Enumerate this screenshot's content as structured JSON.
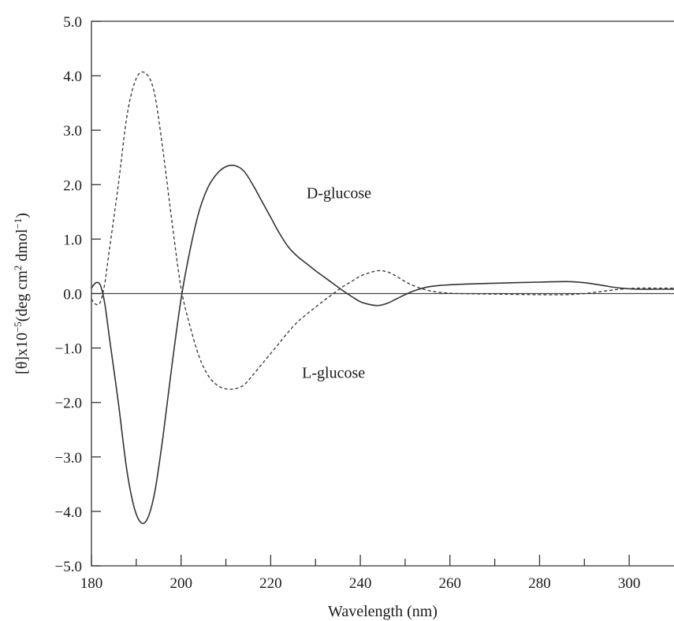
{
  "chart_data": {
    "type": "line",
    "title": "",
    "xlabel": "Wavelength (nm)",
    "ylabel_parts": [
      "[θ]x10",
      "−5",
      "(deg cm",
      "2",
      " dmol",
      "−1",
      ")"
    ],
    "xlim": [
      180,
      310
    ],
    "ylim": [
      -5.0,
      5.0
    ],
    "x_ticks": [
      180,
      200,
      220,
      240,
      260,
      280,
      300
    ],
    "x_minor_ticks": [
      190,
      210,
      230,
      250,
      270,
      290
    ],
    "y_ticks": [
      -5.0,
      -4.0,
      -3.0,
      -2.0,
      -1.0,
      0.0,
      1.0,
      2.0,
      3.0,
      4.0,
      5.0
    ],
    "y_tick_labels": [
      "−5.0",
      "−4.0",
      "−3.0",
      "−2.0",
      "−1.0",
      "0.0",
      "1.0",
      "2.0",
      "3.0",
      "4.0",
      "5.0"
    ],
    "zero_line": true,
    "grid": false,
    "series": [
      {
        "name": "D-glucose",
        "style": "solid",
        "color": "#333333",
        "x": [
          180,
          181,
          182,
          183,
          184,
          186,
          188,
          190,
          192,
          194,
          196,
          198,
          200,
          202,
          204,
          206,
          208,
          210,
          212,
          214,
          216,
          218,
          220,
          222,
          224,
          226,
          228,
          230,
          232,
          234,
          236,
          238,
          240,
          242,
          244,
          246,
          248,
          250,
          252,
          255,
          258,
          262,
          270,
          280,
          286,
          290,
          294,
          298,
          302,
          306,
          310
        ],
        "y": [
          0.1,
          0.2,
          0.15,
          -0.2,
          -0.8,
          -2.0,
          -3.3,
          -4.05,
          -4.2,
          -3.7,
          -2.6,
          -1.3,
          -0.1,
          0.8,
          1.5,
          1.95,
          2.2,
          2.33,
          2.35,
          2.25,
          2.0,
          1.7,
          1.4,
          1.1,
          0.85,
          0.68,
          0.55,
          0.42,
          0.3,
          0.18,
          0.06,
          -0.05,
          -0.15,
          -0.2,
          -0.22,
          -0.18,
          -0.1,
          -0.02,
          0.05,
          0.12,
          0.15,
          0.17,
          0.19,
          0.21,
          0.22,
          0.2,
          0.15,
          0.1,
          0.08,
          0.08,
          0.08
        ]
      },
      {
        "name": "L-glucose",
        "style": "dashed",
        "color": "#333333",
        "x": [
          180,
          181,
          182,
          183,
          184,
          186,
          188,
          190,
          192,
          194,
          196,
          198,
          200,
          202,
          204,
          206,
          208,
          210,
          212,
          214,
          216,
          218,
          220,
          222,
          224,
          226,
          228,
          230,
          232,
          234,
          236,
          238,
          240,
          242,
          244,
          246,
          248,
          250,
          252,
          255,
          258,
          262,
          270,
          280,
          286,
          290,
          294,
          298,
          302,
          306,
          310
        ],
        "y": [
          -0.1,
          -0.2,
          -0.15,
          0.2,
          0.8,
          2.0,
          3.3,
          3.95,
          4.05,
          3.7,
          2.6,
          1.3,
          0.1,
          -0.6,
          -1.15,
          -1.5,
          -1.68,
          -1.75,
          -1.75,
          -1.68,
          -1.5,
          -1.3,
          -1.1,
          -0.9,
          -0.7,
          -0.52,
          -0.38,
          -0.25,
          -0.12,
          0.0,
          0.12,
          0.22,
          0.32,
          0.38,
          0.42,
          0.4,
          0.32,
          0.22,
          0.14,
          0.06,
          0.02,
          0.0,
          -0.01,
          -0.02,
          -0.02,
          0.0,
          0.04,
          0.08,
          0.1,
          0.1,
          0.1
        ]
      }
    ],
    "annotations": [
      {
        "text": "D-glucose",
        "x": 228,
        "y": 1.75
      },
      {
        "text": "L-glucose",
        "x": 227,
        "y": -1.55
      }
    ]
  }
}
